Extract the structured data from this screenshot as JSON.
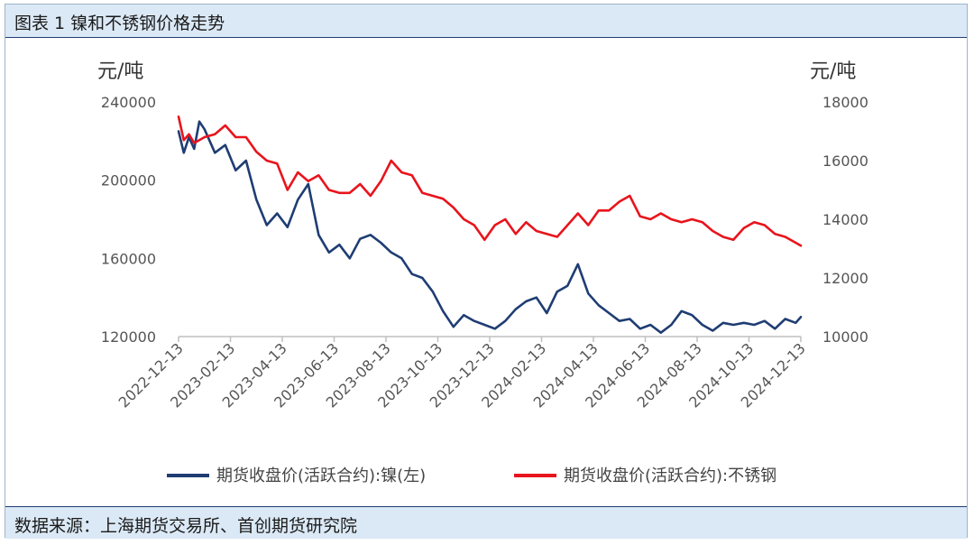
{
  "title": "图表 1 镍和不锈钢价格走势",
  "source": "数据来源：上海期货交易所、首创期货研究院",
  "chart_data": {
    "type": "line",
    "left_unit": "元/吨",
    "right_unit": "元/吨",
    "left_ylim": [
      120000,
      240000
    ],
    "right_ylim": [
      10000,
      18000
    ],
    "left_ticks": [
      "240000",
      "200000",
      "160000",
      "120000"
    ],
    "right_ticks": [
      "18000",
      "16000",
      "14000",
      "12000",
      "10000"
    ],
    "x_categories": [
      "2022-12-13",
      "2023-02-13",
      "2023-04-13",
      "2023-06-13",
      "2023-08-13",
      "2023-10-13",
      "2023-12-13",
      "2024-02-13",
      "2024-04-13",
      "2024-06-13",
      "2024-08-13",
      "2024-10-13",
      "2024-12-13"
    ],
    "series": [
      {
        "name": "期货收盘价(活跃合约):镍(左)",
        "axis": "left",
        "color": "#1f3d73",
        "x": [
          0,
          0.1,
          0.2,
          0.3,
          0.4,
          0.5,
          0.7,
          0.9,
          1.1,
          1.3,
          1.5,
          1.7,
          1.9,
          2.1,
          2.3,
          2.5,
          2.7,
          2.9,
          3.1,
          3.3,
          3.5,
          3.7,
          3.9,
          4.1,
          4.3,
          4.5,
          4.7,
          4.9,
          5.1,
          5.3,
          5.5,
          5.7,
          5.9,
          6.1,
          6.3,
          6.5,
          6.7,
          6.9,
          7.1,
          7.3,
          7.5,
          7.7,
          7.9,
          8.1,
          8.3,
          8.5,
          8.7,
          8.9,
          9.1,
          9.3,
          9.5,
          9.7,
          9.9,
          10.1,
          10.3,
          10.5,
          10.7,
          10.9,
          11.1,
          11.3,
          11.5,
          11.7,
          11.9,
          12.0
        ],
        "y": [
          225000,
          214000,
          222000,
          216000,
          230000,
          226000,
          214000,
          218000,
          205000,
          210000,
          190000,
          177000,
          183000,
          176000,
          190000,
          198000,
          172000,
          163000,
          167000,
          160000,
          170000,
          172000,
          168000,
          163000,
          160000,
          152000,
          150000,
          143000,
          133000,
          125000,
          131000,
          128000,
          126000,
          124000,
          128000,
          134000,
          138000,
          140000,
          132000,
          143000,
          146000,
          157000,
          142000,
          136000,
          132000,
          128000,
          129000,
          124000,
          126000,
          122000,
          126000,
          133000,
          131000,
          126000,
          123000,
          127000,
          126000,
          127000,
          126000,
          128000,
          124000,
          129000,
          127000,
          130000
        ]
      },
      {
        "name": "期货收盘价(活跃合约):不锈钢",
        "axis": "right",
        "color": "#e8141c",
        "x": [
          0,
          0.1,
          0.2,
          0.3,
          0.5,
          0.7,
          0.9,
          1.1,
          1.3,
          1.5,
          1.7,
          1.9,
          2.1,
          2.3,
          2.5,
          2.7,
          2.9,
          3.1,
          3.3,
          3.5,
          3.7,
          3.9,
          4.1,
          4.3,
          4.5,
          4.7,
          4.9,
          5.1,
          5.3,
          5.5,
          5.7,
          5.9,
          6.1,
          6.3,
          6.5,
          6.7,
          6.9,
          7.1,
          7.3,
          7.5,
          7.7,
          7.9,
          8.1,
          8.3,
          8.5,
          8.7,
          8.9,
          9.1,
          9.3,
          9.5,
          9.7,
          9.9,
          10.1,
          10.3,
          10.5,
          10.7,
          10.9,
          11.1,
          11.3,
          11.5,
          11.7,
          11.9,
          12.0
        ],
        "y": [
          17500,
          16700,
          16900,
          16600,
          16800,
          16900,
          17200,
          16800,
          16800,
          16300,
          16000,
          15900,
          15000,
          15600,
          15300,
          15500,
          15000,
          14900,
          14900,
          15200,
          14800,
          15300,
          16000,
          15600,
          15500,
          14900,
          14800,
          14700,
          14400,
          14000,
          13800,
          13300,
          13800,
          14000,
          13500,
          13900,
          13600,
          13500,
          13400,
          13800,
          14200,
          13800,
          14300,
          14300,
          14600,
          14800,
          14100,
          14000,
          14200,
          14000,
          13900,
          14000,
          13900,
          13600,
          13400,
          13300,
          13700,
          13900,
          13800,
          13500,
          13400,
          13200,
          13100
        ]
      }
    ]
  }
}
